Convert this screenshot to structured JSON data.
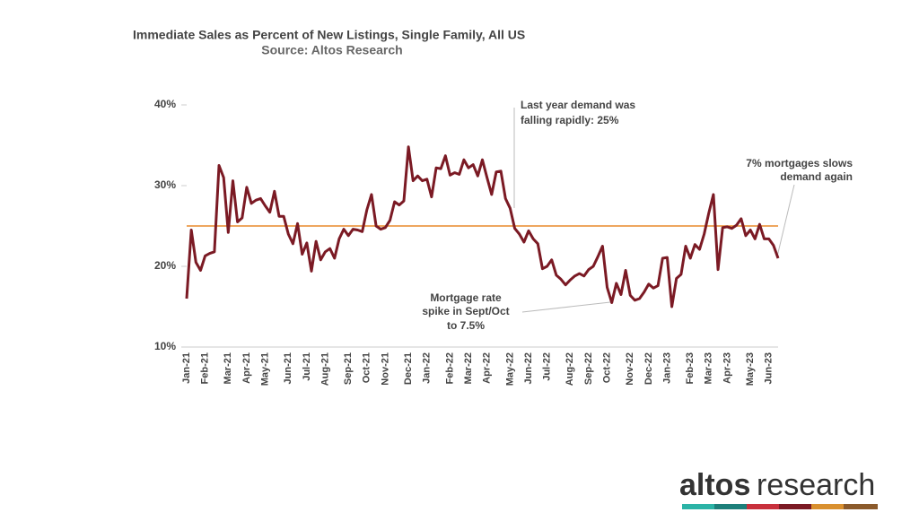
{
  "chart_data": {
    "type": "line",
    "title": "Immediate Sales as Percent of New Listings, Single Family, All US",
    "subtitle": "Source: Altos Research",
    "categories": [
      "Jan-21",
      null,
      null,
      null,
      "Feb-21",
      null,
      null,
      null,
      null,
      "Mar-21",
      null,
      null,
      null,
      "Apr-21",
      null,
      null,
      null,
      "May-21",
      null,
      null,
      null,
      null,
      "Jun-21",
      null,
      null,
      null,
      "Jul-21",
      null,
      null,
      null,
      "Aug-21",
      null,
      null,
      null,
      null,
      "Sep-21",
      null,
      null,
      null,
      "Oct-21",
      null,
      null,
      null,
      "Nov-21",
      null,
      null,
      null,
      null,
      "Dec-21",
      null,
      null,
      null,
      "Jan-22",
      null,
      null,
      null,
      null,
      "Feb-22",
      null,
      null,
      null,
      "Mar-22",
      null,
      null,
      null,
      "Apr-22",
      null,
      null,
      null,
      null,
      "May-22",
      null,
      null,
      null,
      "Jun-22",
      null,
      null,
      null,
      "Jul-22",
      null,
      null,
      null,
      null,
      "Aug-22",
      null,
      null,
      null,
      "Sep-22",
      null,
      null,
      null,
      "Oct-22",
      null,
      null,
      null,
      null,
      "Nov-22",
      null,
      null,
      null,
      "Dec-22",
      null,
      null,
      null,
      "Jan-23",
      null,
      null,
      null,
      null,
      "Feb-23",
      null,
      null,
      null,
      "Mar-23",
      null,
      null,
      null,
      "Apr-23",
      null,
      null,
      null,
      null,
      "May-23",
      null,
      null,
      null,
      "Jun-23",
      null,
      null
    ],
    "series": [
      {
        "name": "Immediate Sales %",
        "color": "#7b1a24",
        "values": [
          16,
          24.5,
          20.5,
          19.5,
          21.3,
          21.6,
          21.8,
          32.5,
          31,
          24.2,
          30.6,
          25.5,
          26,
          29.8,
          27.8,
          28.2,
          28.4,
          27.5,
          26.7,
          29.3,
          26.2,
          26.2,
          24,
          22.8,
          25.3,
          21.5,
          22.9,
          19.4,
          23.1,
          20.8,
          21.8,
          22.2,
          21,
          23.4,
          24.6,
          23.8,
          24.6,
          24.5,
          24.3,
          27,
          28.9,
          25,
          24.6,
          24.8,
          25.7,
          28,
          27.6,
          28.1,
          34.8,
          30.6,
          31.2,
          30.6,
          30.8,
          28.6,
          32.2,
          32.1,
          33.7,
          31.3,
          31.6,
          31.4,
          33.2,
          32.2,
          32.6,
          31.2,
          33.2,
          31,
          28.9,
          31.7,
          31.8,
          28.4,
          27.2,
          24.7,
          24,
          23,
          24.4,
          23.4,
          22.8,
          19.7,
          20,
          20.8,
          18.9,
          18.4,
          17.7,
          18.3,
          18.8,
          19.1,
          18.8,
          19.6,
          20,
          21.2,
          22.5,
          17.4,
          15.5,
          17.9,
          16.5,
          19.5,
          16.4,
          15.8,
          16,
          16.8,
          17.8,
          17.3,
          17.6,
          21,
          21.1,
          15,
          18.5,
          19,
          22.5,
          21,
          22.7,
          22.1,
          24,
          26.6,
          28.9,
          19.6,
          24.8,
          24.9,
          24.7,
          25.1,
          25.9,
          23.8,
          24.5,
          23.4,
          25.2,
          23.4,
          23.4,
          22.6,
          21
        ]
      }
    ],
    "ylim": [
      10,
      40
    ],
    "yticks": [
      {
        "value": 10,
        "label": "10%"
      },
      {
        "value": 20,
        "label": "20%"
      },
      {
        "value": 30,
        "label": "30%"
      },
      {
        "value": 40,
        "label": "40%"
      }
    ],
    "reference_line": {
      "value": 25,
      "color": "#e8892a"
    },
    "annotations": [
      {
        "lines": [
          "Last year demand was",
          "falling rapidly: 25%"
        ]
      },
      {
        "lines": [
          "Mortgage rate",
          "spike in Sept/Oct",
          "to 7.5%"
        ]
      },
      {
        "lines": [
          "7% mortgages slows",
          "demand again"
        ]
      }
    ],
    "logo": [
      "altos",
      "research"
    ]
  }
}
